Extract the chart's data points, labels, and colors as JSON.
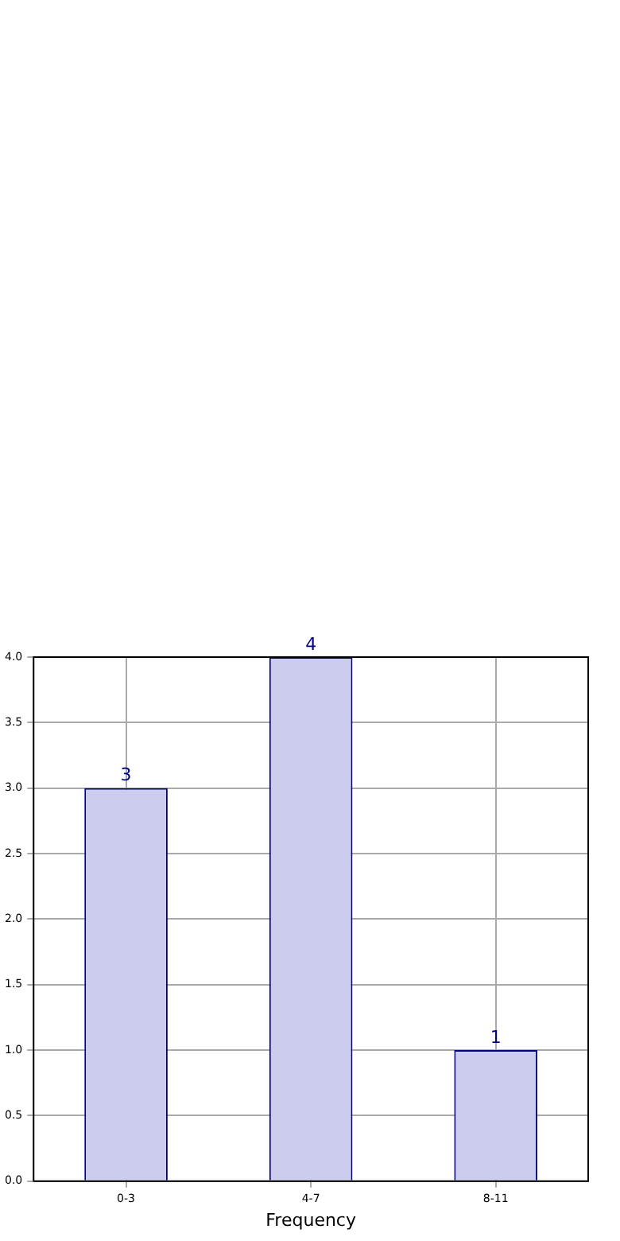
{
  "chart_data": {
    "type": "bar",
    "xlabel": "Frequency",
    "categories": [
      "0-3",
      "4-7",
      "8-11"
    ],
    "values": [
      3,
      4,
      1
    ],
    "color": "#ccccee",
    "ylim": [
      0,
      4
    ],
    "yticks": [
      {
        "value": 0,
        "label": "0.0"
      },
      {
        "value": 0.5,
        "label": "0.5"
      },
      {
        "value": 1,
        "label": "1.0"
      },
      {
        "value": 1.5,
        "label": "1.5"
      },
      {
        "value": 2,
        "label": "2.0"
      },
      {
        "value": 2.5,
        "label": "2.5"
      },
      {
        "value": 3,
        "label": "3.0"
      },
      {
        "value": 3.5,
        "label": "3.5"
      },
      {
        "value": 4,
        "label": "4.0"
      }
    ],
    "grid": true,
    "data_labels": true
  }
}
